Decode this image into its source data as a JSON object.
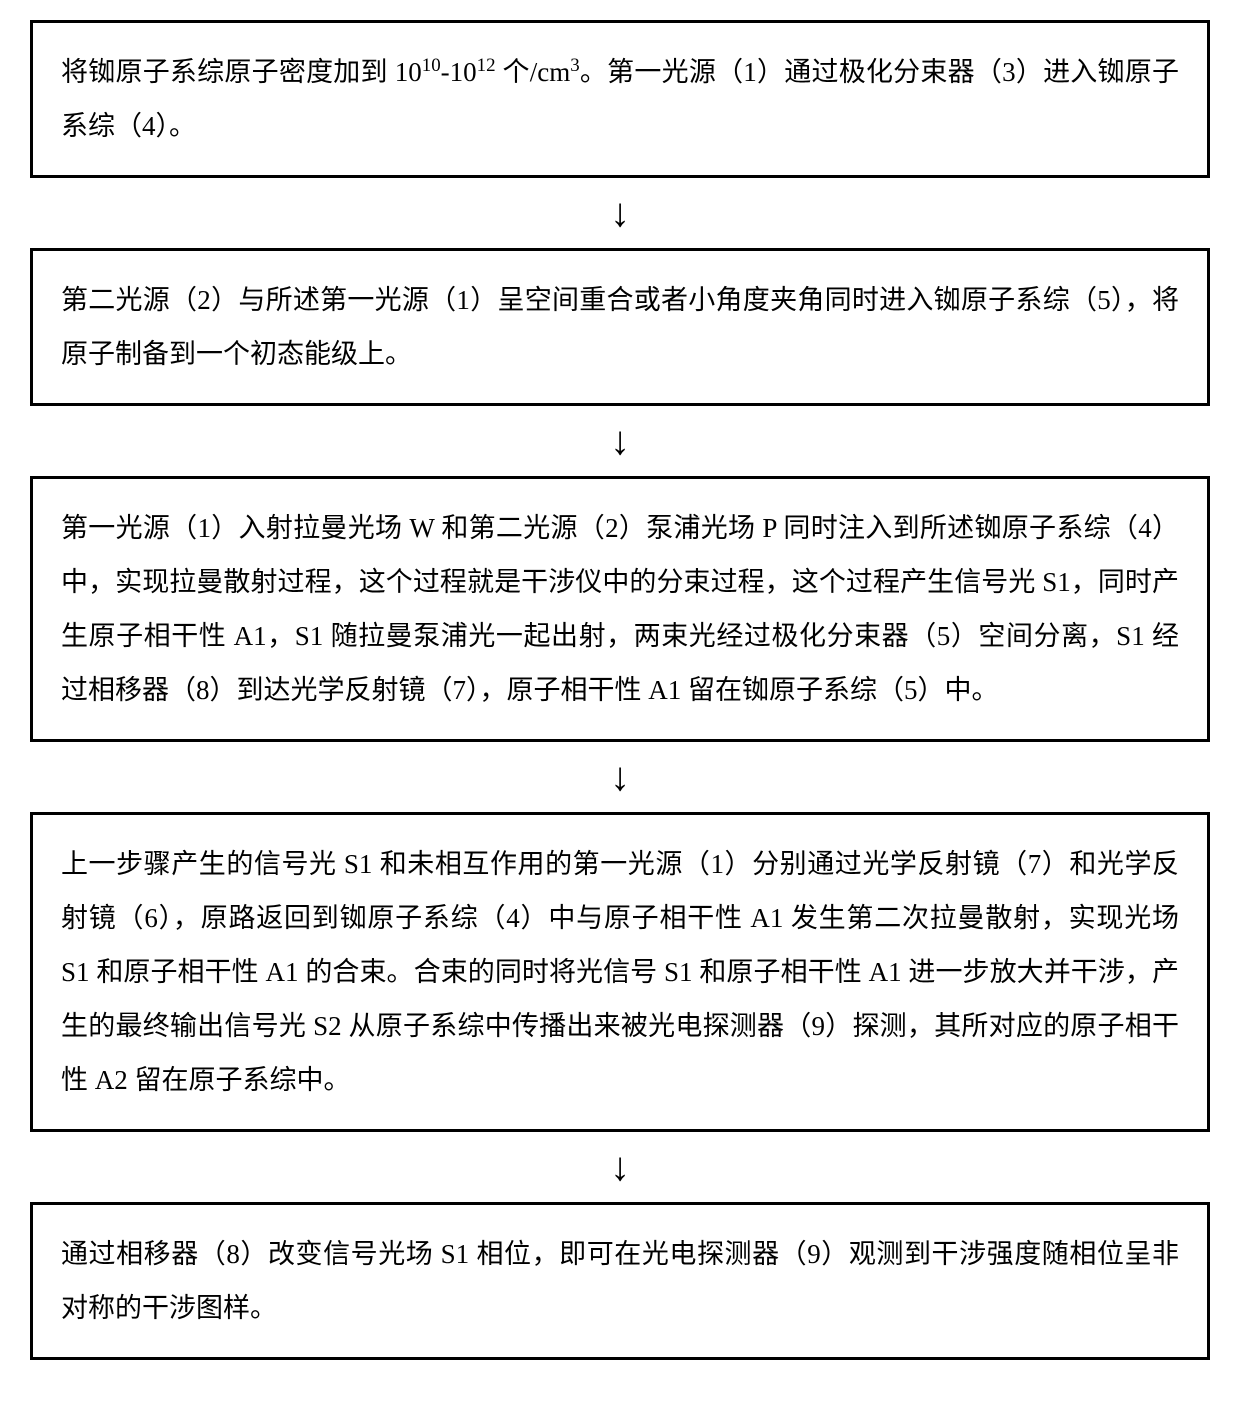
{
  "flowchart": {
    "type": "flowchart",
    "direction": "vertical",
    "node_style": {
      "border_color": "#000000",
      "border_width": 3,
      "background_color": "#ffffff",
      "text_color": "#000000",
      "font_size": 27,
      "font_family": "SimSun"
    },
    "arrow_style": {
      "color": "#000000",
      "glyph": "↓",
      "font_size": 40
    },
    "steps": [
      {
        "id": "step1",
        "html": "将铷原子系综原子密度加到 10<sup>10</sup>-10<sup>12</sup> 个/cm<sup>3</sup>。第一光源（1）通过极化分束器（3）进入铷原子系综（4）。"
      },
      {
        "id": "step2",
        "html": "第二光源（2）与所述第一光源（1）呈空间重合或者小角度夹角同时进入铷原子系综（5），将原子制备到一个初态能级上。"
      },
      {
        "id": "step3",
        "html": "第一光源（1）入射拉曼光场 W 和第二光源（2）泵浦光场 P 同时注入到所述铷原子系综（4）中，实现拉曼散射过程，这个过程就是干涉仪中的分束过程，这个过程产生信号光 S1，同时产生原子相干性 A1，S1 随拉曼泵浦光一起出射，两束光经过极化分束器（5）空间分离，S1 经过相移器（8）到达光学反射镜（7），原子相干性 A1 留在铷原子系综（5）中。"
      },
      {
        "id": "step4",
        "html": "上一步骤产生的信号光 S1 和未相互作用的第一光源（1）分别通过光学反射镜（7）和光学反射镜（6），原路返回到铷原子系综（4）中与原子相干性 A1 发生第二次拉曼散射，实现光场 S1 和原子相干性 A1 的合束。合束的同时将光信号 S1 和原子相干性 A1 进一步放大并干涉，产生的最终输出信号光 S2 从原子系综中传播出来被光电探测器（9）探测，其所对应的原子相干性 A2 留在原子系综中。"
      },
      {
        "id": "step5",
        "html": "通过相移器（8）改变信号光场 S1 相位，即可在光电探测器（9）观测到干涉强度随相位呈非对称的干涉图样。"
      }
    ]
  }
}
